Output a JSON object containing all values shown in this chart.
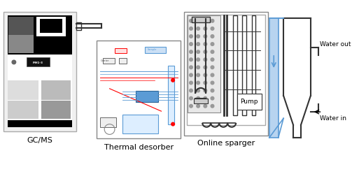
{
  "bg_color": "#ffffff",
  "label_color": "#000000",
  "blue_color": "#5b9bd5",
  "outline_color": "#555555",
  "dark_outline": "#333333",
  "labels": {
    "gcms": "GC/MS",
    "thermal": "Thermal desorber",
    "sparger": "Online sparger",
    "water_out": "Water out",
    "water_in": "Water in",
    "pump": "Pump"
  },
  "figsize": [
    5.03,
    2.49
  ],
  "dpi": 100
}
